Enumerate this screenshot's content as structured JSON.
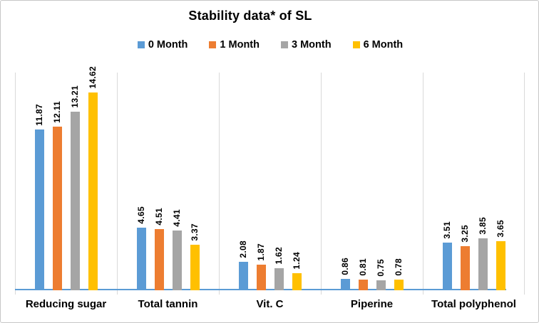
{
  "chart_data": {
    "type": "bar",
    "title": "Stability data* of SL",
    "categories": [
      "Reducing sugar",
      "Total tannin",
      "Vit. C",
      "Piperine",
      "Total polyphenol"
    ],
    "series": [
      {
        "name": "0 Month",
        "color": "#5B9BD5",
        "values": [
          11.87,
          4.65,
          2.08,
          0.86,
          3.51
        ]
      },
      {
        "name": "1 Month",
        "color": "#ED7D31",
        "values": [
          12.11,
          4.51,
          1.87,
          0.81,
          3.25
        ]
      },
      {
        "name": "3 Month",
        "color": "#A5A5A5",
        "values": [
          13.21,
          4.41,
          1.62,
          0.75,
          3.85
        ]
      },
      {
        "name": "6 Month",
        "color": "#FFC000",
        "values": [
          14.62,
          3.37,
          1.24,
          0.78,
          3.65
        ]
      }
    ],
    "xlabel": "",
    "ylabel": "",
    "ylim": [
      0,
      16.1
    ],
    "y_axis_labels_visible": false,
    "grid": "vertical category separators only",
    "gridline_color": "#D9D9D9",
    "axis_line_color": "#5B9BD5",
    "legend_position": "top-center",
    "data_labels": "values shown rotated 90 degrees above each bar, two decimals"
  }
}
